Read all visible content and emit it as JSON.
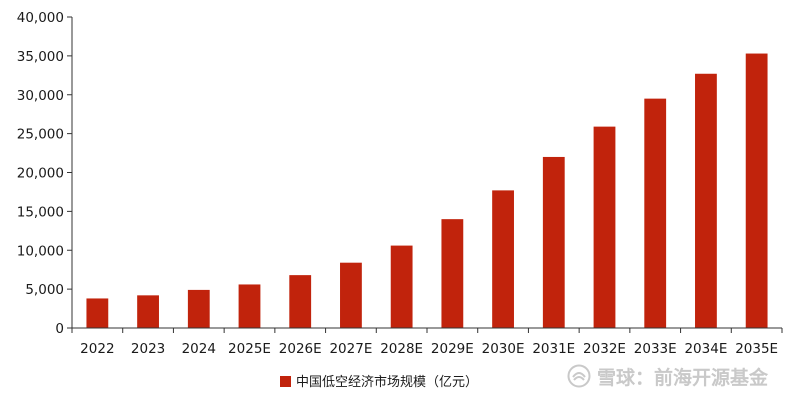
{
  "chart_data": {
    "type": "bar",
    "categories": [
      "2022",
      "2023",
      "2024",
      "2025E",
      "2026E",
      "2027E",
      "2028E",
      "2029E",
      "2030E",
      "2031E",
      "2032E",
      "2033E",
      "2034E",
      "2035E"
    ],
    "series": [
      {
        "name": "中国低空经济市场规模（亿元）",
        "color": "#c1230c",
        "values": [
          3800,
          4200,
          4900,
          5600,
          6800,
          8400,
          10600,
          14000,
          17700,
          22000,
          25900,
          29500,
          32700,
          35300
        ]
      }
    ],
    "yticks": [
      "0",
      "5,000",
      "10,000",
      "15,000",
      "20,000",
      "25,000",
      "30,000",
      "35,000",
      "40,000"
    ],
    "ylim": [
      0,
      40000
    ],
    "grid": false,
    "legend": "bottom-center"
  },
  "watermark": {
    "text": "雪球：前海开源基金",
    "icon": "snowball-logo-icon"
  }
}
